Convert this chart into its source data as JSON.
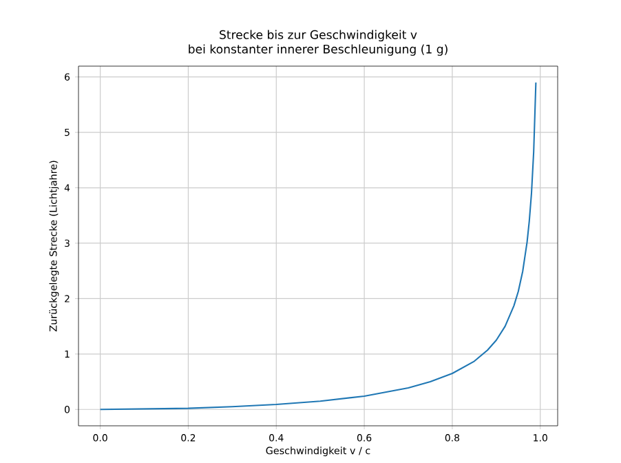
{
  "chart_data": {
    "type": "line",
    "title": "Strecke bis zur Geschwindigkeit v",
    "subtitle": "bei konstanter innerer Beschleunigung (1 g)",
    "xlabel": "Geschwindigkeit v / c",
    "ylabel": "Zurückgelegte Strecke (Lichtjahre)",
    "x": [
      0,
      0.1,
      0.2,
      0.3,
      0.4,
      0.5,
      0.6,
      0.7,
      0.75,
      0.8,
      0.85,
      0.88,
      0.9,
      0.92,
      0.94,
      0.95,
      0.96,
      0.97,
      0.975,
      0.98,
      0.985,
      0.99
    ],
    "series": [
      {
        "color": "#1f77b4",
        "values": [
          0,
          0.01,
          0.02,
          0.05,
          0.09,
          0.15,
          0.24,
          0.39,
          0.5,
          0.65,
          0.87,
          1.07,
          1.25,
          1.5,
          1.87,
          2.13,
          2.49,
          3.02,
          3.4,
          3.9,
          4.65,
          5.9
        ]
      }
    ],
    "xlim": [
      -0.0495,
      1.0395
    ],
    "ylim": [
      -0.295,
      6.195
    ],
    "xticks": [
      {
        "value": 0,
        "label": "0.0"
      },
      {
        "value": 0.2,
        "label": "0.2"
      },
      {
        "value": 0.4,
        "label": "0.4"
      },
      {
        "value": 0.6,
        "label": "0.6"
      },
      {
        "value": 0.8,
        "label": "0.8"
      },
      {
        "value": 1,
        "label": "1.0"
      }
    ],
    "yticks": [
      0,
      1,
      2,
      3,
      4,
      5,
      6
    ],
    "grid": true,
    "marker": "none",
    "line_style": "solid"
  }
}
